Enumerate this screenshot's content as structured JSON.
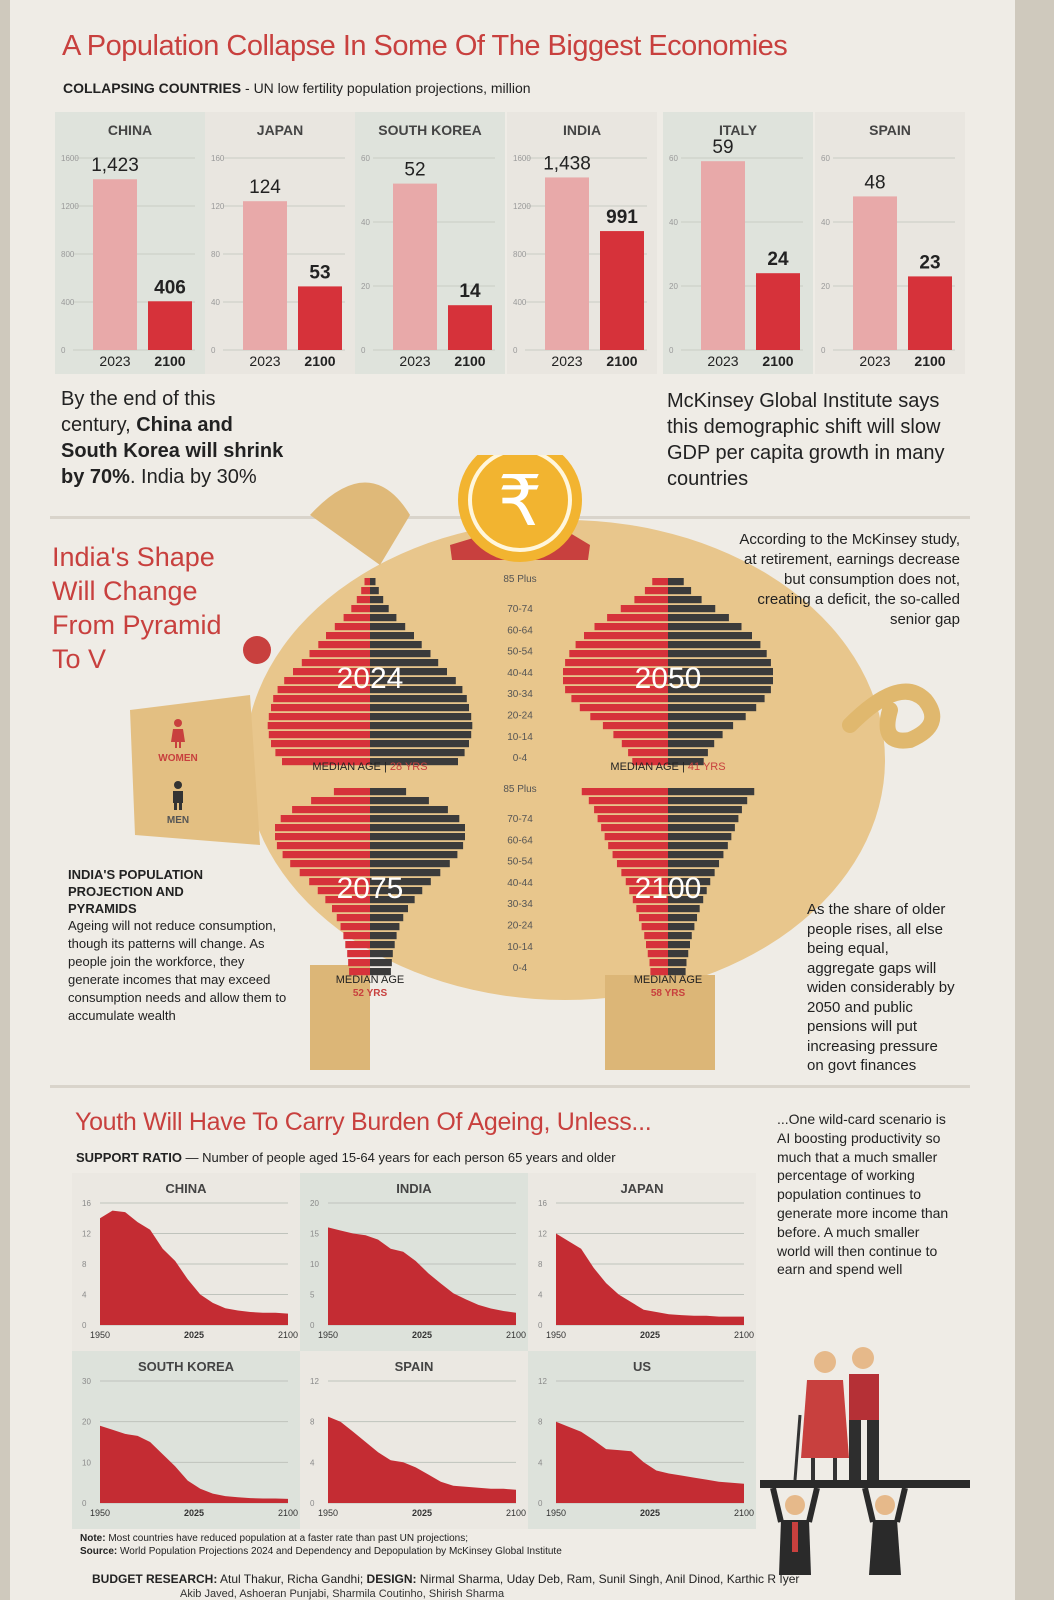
{
  "page": {
    "headline": "A Population Collapse In Some Of The Biggest Economies",
    "sub_bold": "COLLAPSING COUNTRIES",
    "sub_rest": " - UN low fertility population projections, million",
    "left_note_1": "By the end of this",
    "left_note_2": "century, ",
    "left_note_2b": "China and",
    "left_note_3": "South Korea will shrink",
    "left_note_4a": "by 70%",
    "left_note_4b": ". India by 30%",
    "right_note": "McKinsey Global Institute says this demographic shift will slow GDP per capita growth in many countries",
    "mid_title": "India's Shape Will Change From Pyramid To V",
    "mckinsey_note": "According to the McKinsey study, at retirement, earnings decrease but consumption does not, creating a deficit, the so-called senior gap",
    "women_label": "WOMEN",
    "men_label": "MEN",
    "pyr_title": "INDIA'S POPULATION PROJECTION AND PYRAMIDS",
    "pyr_text": "Ageing will not reduce consumption, though its patterns will change. As people join the workforce, they generate incomes that may exceed consumption needs and allow them to accumulate wealth",
    "share_note": "As the share of older people rises, all else being equal, aggregate gaps will widen considerably by 2050 and public pensions will put increasing pressure on govt finances",
    "youth_title": "Youth Will Have To Carry Burden Of Ageing, Unless...",
    "support_bold": "SUPPORT RATIO",
    "support_rest": " — Number of people aged 15-64 years for each person 65 years and older",
    "wildcard": "...One wild-card scenario is AI boosting productivity so much that a much smaller percentage of working population continues to generate more income than before. A much smaller world will then continue to earn and spend well",
    "note_label": "Note:",
    "note_text": " Most countries have reduced population at a faster rate than past UN projections;",
    "source_label": "Source:",
    "source_text": " World Population Projections 2024 and Dependency and Depopulation by McKinsey Global Institute",
    "credit_label": "BUDGET RESEARCH:",
    "credit_text": " Atul Thakur, Richa Gandhi; ",
    "design_label": "DESIGN:",
    "design_text": " Nirmal Sharma, Uday Deb, Ram, Sunil Singh, Anil Dinod, Karthic R Iyer",
    "credit_line2": "Akib Javed, Ashoeran Punjabi, Sharmila Coutinho, Shirish Sharma",
    "rupee": "₹"
  },
  "colors": {
    "accent": "#c8403e",
    "bar_2023": "#e8a9a9",
    "bar_2100": "#d6323a",
    "dark": "#3b3b3b",
    "pig": "#e6c48a"
  },
  "chart_data": [
    {
      "type": "bar",
      "series": [
        {
          "country": "CHINA",
          "categories": [
            "2023",
            "2100"
          ],
          "values": [
            1423,
            406
          ],
          "labels": [
            "1,423",
            "406"
          ],
          "ticks": [
            "1600",
            "1200",
            "800",
            "400",
            "0"
          ],
          "ylim": [
            0,
            1600
          ]
        },
        {
          "country": "JAPAN",
          "categories": [
            "2023",
            "2100"
          ],
          "values": [
            124,
            53
          ],
          "labels": [
            "124",
            "53"
          ],
          "ticks": [
            "160",
            "120",
            "80",
            "40",
            "0"
          ],
          "ylim": [
            0,
            160
          ]
        },
        {
          "country": "SOUTH KOREA",
          "categories": [
            "2023",
            "2100"
          ],
          "values": [
            52,
            14
          ],
          "labels": [
            "52",
            "14"
          ],
          "ticks": [
            "60",
            "40",
            "20",
            "0"
          ],
          "ylim": [
            0,
            60
          ]
        },
        {
          "country": "INDIA",
          "categories": [
            "2023",
            "2100"
          ],
          "values": [
            1438,
            991
          ],
          "labels": [
            "1,438",
            "991"
          ],
          "ticks": [
            "1600",
            "1200",
            "800",
            "400",
            "0"
          ],
          "ylim": [
            0,
            1600
          ]
        },
        {
          "country": "ITALY",
          "categories": [
            "2023",
            "2100"
          ],
          "values": [
            59,
            24
          ],
          "labels": [
            "59",
            "24"
          ],
          "ticks": [
            "60",
            "40",
            "20",
            "0"
          ],
          "ylim": [
            0,
            60
          ]
        },
        {
          "country": "SPAIN",
          "categories": [
            "2023",
            "2100"
          ],
          "values": [
            48,
            23
          ],
          "labels": [
            "48",
            "23"
          ],
          "ticks": [
            "60",
            "40",
            "20",
            "0"
          ],
          "ylim": [
            0,
            60
          ]
        }
      ]
    },
    {
      "type": "pyramid",
      "age_labels": [
        "85 Plus",
        "70-74",
        "60-64",
        "50-54",
        "40-44",
        "30-34",
        "20-24",
        "10-14",
        "0-4"
      ],
      "pyramids": [
        {
          "year": "2024",
          "median_label": "MEDIAN AGE | ",
          "median_value": "28 YRS",
          "widths": [
            0.05,
            0.08,
            0.12,
            0.17,
            0.24,
            0.32,
            0.4,
            0.47,
            0.55,
            0.62,
            0.7,
            0.78,
            0.84,
            0.88,
            0.9,
            0.92,
            0.93,
            0.92,
            0.9,
            0.86,
            0.8
          ]
        },
        {
          "year": "2050",
          "median_label": "MEDIAN AGE | ",
          "median_value": "41 YRS",
          "widths": [
            0.15,
            0.22,
            0.32,
            0.45,
            0.58,
            0.7,
            0.8,
            0.88,
            0.94,
            0.98,
            1.0,
            1.0,
            0.98,
            0.92,
            0.84,
            0.74,
            0.62,
            0.52,
            0.44,
            0.38,
            0.34
          ]
        },
        {
          "year": "2075",
          "median_label": "MEDIAN AGE",
          "median_value": "52 YRS",
          "widths": [
            0.38,
            0.62,
            0.82,
            0.94,
            1.0,
            1.0,
            0.98,
            0.92,
            0.84,
            0.74,
            0.64,
            0.55,
            0.47,
            0.4,
            0.35,
            0.31,
            0.28,
            0.26,
            0.24,
            0.23,
            0.22
          ]
        },
        {
          "year": "2100",
          "median_label": "MEDIAN AGE",
          "median_value": "58 YRS",
          "widths": [
            0.98,
            0.9,
            0.84,
            0.8,
            0.76,
            0.72,
            0.68,
            0.63,
            0.58,
            0.53,
            0.48,
            0.44,
            0.4,
            0.36,
            0.33,
            0.3,
            0.27,
            0.25,
            0.23,
            0.21,
            0.2
          ]
        }
      ]
    },
    {
      "type": "area",
      "x": [
        1950,
        1960,
        1970,
        1980,
        1990,
        2000,
        2010,
        2020,
        2030,
        2040,
        2050,
        2060,
        2070,
        2080,
        2090,
        2100
      ],
      "x_ticks": [
        "1950",
        "2025",
        "2100"
      ],
      "series": [
        {
          "country": "CHINA",
          "ylim": [
            0,
            16
          ],
          "ticks": [
            "16",
            "12",
            "8",
            "4",
            "0"
          ],
          "values": [
            14,
            15,
            14.8,
            13.5,
            12.5,
            10,
            8.4,
            6.0,
            4.0,
            2.9,
            2.2,
            1.9,
            1.7,
            1.6,
            1.6,
            1.5
          ]
        },
        {
          "country": "INDIA",
          "ylim": [
            0,
            20
          ],
          "ticks": [
            "20",
            "15",
            "10",
            "5",
            "0"
          ],
          "values": [
            16,
            15.5,
            15,
            14.7,
            14,
            12.5,
            12,
            10.5,
            8.5,
            6.8,
            5.2,
            4.2,
            3.3,
            2.7,
            2.3,
            2.0
          ]
        },
        {
          "country": "JAPAN",
          "ylim": [
            0,
            16
          ],
          "ticks": [
            "16",
            "12",
            "8",
            "4",
            "0"
          ],
          "values": [
            12,
            11,
            10,
            7.5,
            5.5,
            4,
            3,
            2.0,
            1.7,
            1.4,
            1.3,
            1.2,
            1.2,
            1.1,
            1.1,
            1.1
          ]
        },
        {
          "country": "SOUTH KOREA",
          "ylim": [
            0,
            30
          ],
          "ticks": [
            "30",
            "20",
            "10",
            "0"
          ],
          "values": [
            19,
            18,
            17,
            16.5,
            15,
            12,
            9,
            5.5,
            3.5,
            2.3,
            1.7,
            1.4,
            1.2,
            1.1,
            1.1,
            1.0
          ]
        },
        {
          "country": "SPAIN",
          "ylim": [
            0,
            12
          ],
          "ticks": [
            "12",
            "8",
            "4",
            "0"
          ],
          "values": [
            8.5,
            8,
            7,
            6,
            5,
            4.2,
            4,
            3.5,
            2.8,
            2.1,
            1.7,
            1.6,
            1.5,
            1.4,
            1.4,
            1.3
          ]
        },
        {
          "country": "US",
          "ylim": [
            0,
            12
          ],
          "ticks": [
            "12",
            "8",
            "4",
            "0"
          ],
          "values": [
            8,
            7.5,
            7,
            6.2,
            5.3,
            5.2,
            5.1,
            4.0,
            3.2,
            2.9,
            2.7,
            2.5,
            2.3,
            2.1,
            2.0,
            1.9
          ]
        }
      ]
    }
  ]
}
